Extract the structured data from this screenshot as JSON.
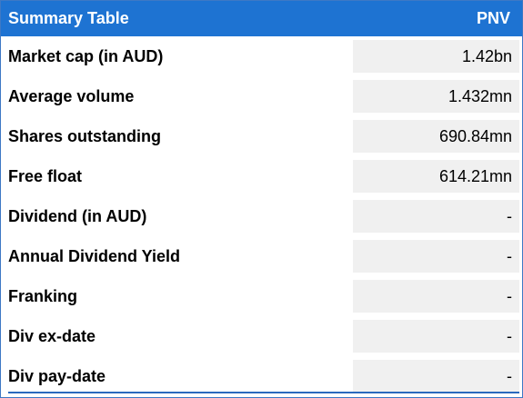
{
  "colors": {
    "header_bg": "#1e73d2",
    "header_text": "#ffffff",
    "border": "#3d78c5",
    "value_cell_bg": "#f0f0f0",
    "bottom_rule": "#2a69bd"
  },
  "table": {
    "title": "Summary Table",
    "ticker": "PNV",
    "rows": [
      {
        "label": "Market cap (in AUD)",
        "value": "1.42bn"
      },
      {
        "label": "Average volume",
        "value": "1.432mn"
      },
      {
        "label": "Shares outstanding",
        "value": "690.84mn"
      },
      {
        "label": "Free float",
        "value": "614.21mn"
      },
      {
        "label": "Dividend (in AUD)",
        "value": "-"
      },
      {
        "label": "Annual Dividend Yield",
        "value": "-"
      },
      {
        "label": "Franking",
        "value": "-"
      },
      {
        "label": "Div ex-date",
        "value": "-"
      },
      {
        "label": "Div pay-date",
        "value": "-"
      }
    ]
  }
}
